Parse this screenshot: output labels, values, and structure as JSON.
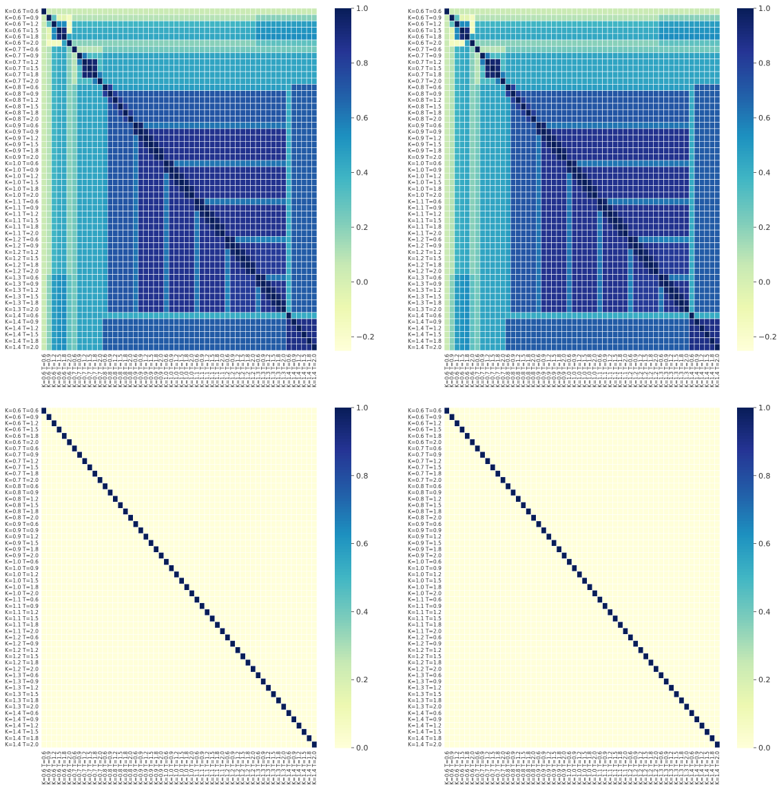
{
  "figure": {
    "layout": "2x2 grid of heatmaps"
  },
  "labels": [
    "K=0.6 T=0.6",
    "K=0.6 T=0.9",
    "K=0.6 T=1.2",
    "K=0.6 T=1.5",
    "K=0.6 T=1.8",
    "K=0.6 T=2.0",
    "K=0.7 T=0.6",
    "K=0.7 T=0.9",
    "K=0.7 T=1.2",
    "K=0.7 T=1.5",
    "K=0.7 T=1.8",
    "K=0.7 T=2.0",
    "K=0.8 T=0.6",
    "K=0.8 T=0.9",
    "K=0.8 T=1.2",
    "K=0.8 T=1.5",
    "K=0.8 T=1.8",
    "K=0.8 T=2.0",
    "K=0.9 T=0.6",
    "K=0.9 T=0.9",
    "K=0.9 T=1.2",
    "K=0.9 T=1.5",
    "K=0.9 T=1.8",
    "K=0.9 T=2.0",
    "K=1.0 T=0.6",
    "K=1.0 T=0.9",
    "K=1.0 T=1.2",
    "K=1.0 T=1.5",
    "K=1.0 T=1.8",
    "K=1.0 T=2.0",
    "K=1.1 T=0.6",
    "K=1.1 T=0.9",
    "K=1.1 T=1.2",
    "K=1.1 T=1.5",
    "K=1.1 T=1.8",
    "K=1.1 T=2.0",
    "K=1.2 T=0.6",
    "K=1.2 T=0.9",
    "K=1.2 T=1.2",
    "K=1.2 T=1.5",
    "K=1.2 T=1.8",
    "K=1.2 T=2.0",
    "K=1.3 T=0.6",
    "K=1.3 T=0.9",
    "K=1.3 T=1.2",
    "K=1.3 T=1.5",
    "K=1.3 T=1.8",
    "K=1.3 T=2.0",
    "K=1.4 T=0.6",
    "K=1.4 T=0.9",
    "K=1.4 T=1.2",
    "K=1.4 T=1.5",
    "K=1.4 T=1.8",
    "K=1.4 T=2.0"
  ],
  "colormap": {
    "name": "YlGnBu",
    "stops": [
      "#ffffd9",
      "#edf8b1",
      "#c7e9b4",
      "#7fcdbb",
      "#41b6c4",
      "#1d91c0",
      "#225ea8",
      "#253494",
      "#081d58"
    ]
  },
  "grid_line_color": "#ffffff",
  "chart_data": [
    {
      "type": "heatmap",
      "panel": "top-left",
      "rows": "labels",
      "cols": "labels",
      "pattern": "correlation",
      "description_values": {
        "diagonal": 1.0,
        "k_0_6_block_min": -0.2,
        "typical_off_diagonal_high_k": 0.85,
        "column_0_value": 0.05,
        "k_1_4_t_0_6_row_value": 0.42
      },
      "colorbar": {
        "vmin": -0.25,
        "vmax": 1.0,
        "ticks": [
          -0.2,
          0.0,
          0.2,
          0.4,
          0.6,
          0.8,
          1.0
        ],
        "tick_labels": [
          "−0.2",
          "0.0",
          "0.2",
          "0.4",
          "0.6",
          "0.8",
          "1.0"
        ]
      }
    },
    {
      "type": "heatmap",
      "panel": "top-right",
      "rows": "labels",
      "cols": "labels",
      "pattern": "correlation",
      "description_values": {
        "diagonal": 1.0,
        "k_0_6_block_min": -0.2,
        "typical_off_diagonal_high_k": 0.85,
        "column_0_value": 0.05,
        "k_1_4_t_0_6_row_value": 0.42
      },
      "colorbar": {
        "vmin": -0.25,
        "vmax": 1.0,
        "ticks": [
          -0.2,
          0.0,
          0.2,
          0.4,
          0.6,
          0.8,
          1.0
        ],
        "tick_labels": [
          "−0.2",
          "0.0",
          "0.2",
          "0.4",
          "0.6",
          "0.8",
          "1.0"
        ]
      }
    },
    {
      "type": "heatmap",
      "panel": "bottom-left",
      "rows": "labels",
      "cols": "labels",
      "pattern": "identity",
      "description_values": {
        "diagonal": 1.0,
        "off_diagonal": 0.0
      },
      "colorbar": {
        "vmin": 0.0,
        "vmax": 1.0,
        "ticks": [
          0.0,
          0.2,
          0.4,
          0.6,
          0.8,
          1.0
        ],
        "tick_labels": [
          "0.0",
          "0.2",
          "0.4",
          "0.6",
          "0.8",
          "1.0"
        ]
      }
    },
    {
      "type": "heatmap",
      "panel": "bottom-right",
      "rows": "labels",
      "cols": "labels",
      "pattern": "identity",
      "description_values": {
        "diagonal": 1.0,
        "off_diagonal": 0.0
      },
      "colorbar": {
        "vmin": 0.0,
        "vmax": 1.0,
        "ticks": [
          0.0,
          0.2,
          0.4,
          0.6,
          0.8,
          1.0
        ],
        "tick_labels": [
          "0.0",
          "0.2",
          "0.4",
          "0.6",
          "0.8",
          "1.0"
        ]
      }
    }
  ]
}
